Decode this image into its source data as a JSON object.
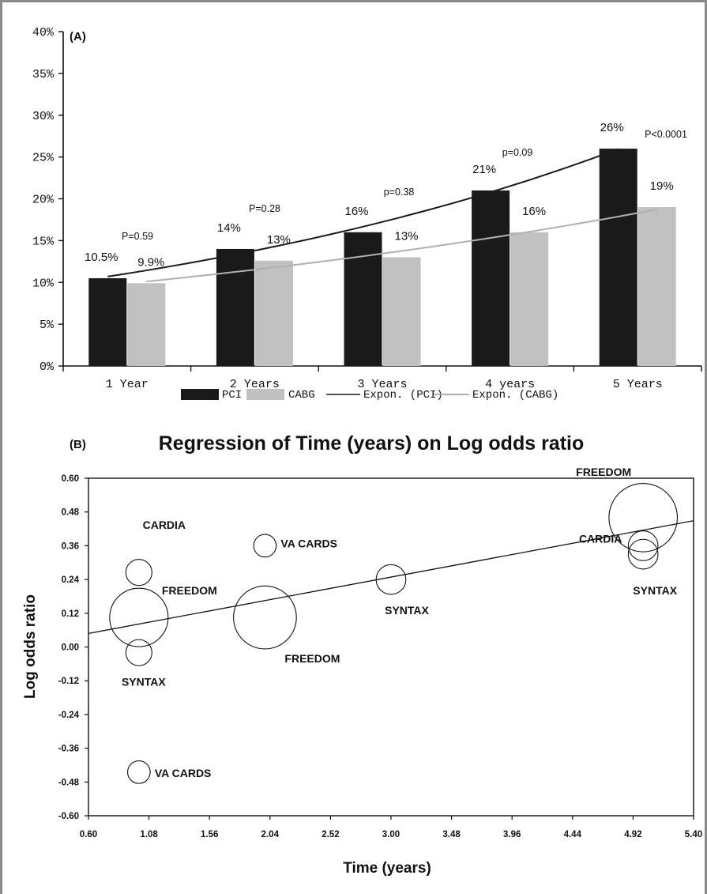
{
  "chart_data": [
    {
      "type": "bar",
      "panel_label": "(A)",
      "categories": [
        "1 Year",
        "2 Years",
        "3 Years",
        "4 years",
        "5 Years"
      ],
      "ylim": [
        0,
        40
      ],
      "y_ticks": [
        "0%",
        "5%",
        "10%",
        "15%",
        "20%",
        "25%",
        "30%",
        "35%",
        "40%"
      ],
      "series": [
        {
          "name": "PCI",
          "values": [
            10.5,
            14,
            16,
            21,
            26
          ],
          "labels": [
            "10.5%",
            "14%",
            "16%",
            "21%",
            "26%"
          ],
          "color": "#1a1a1a"
        },
        {
          "name": "CABG",
          "values": [
            9.9,
            12.6,
            13,
            16,
            19
          ],
          "labels": [
            "9.9%",
            "13%",
            "13%",
            "16%",
            "19%"
          ],
          "color": "#c0c0c0"
        }
      ],
      "trendlines": [
        {
          "name": "Expon. (PCI)",
          "color": "#1a1a1a"
        },
        {
          "name": "Expon. (CABG)",
          "color": "#b0b0b0"
        }
      ],
      "p_values": [
        "P=0.59",
        "P=0.28",
        "p=0.38",
        "p=0.09",
        "P<0.0001"
      ],
      "legend": "bottom"
    },
    {
      "type": "scatter",
      "panel_label": "(B)",
      "title": "Regression of Time (years) on Log odds ratio",
      "xlabel": "Time (years)",
      "ylabel": "Log odds ratio",
      "xlim": [
        0.6,
        5.4
      ],
      "ylim": [
        -0.6,
        0.6
      ],
      "x_ticks": [
        "0.60",
        "1.08",
        "1.56",
        "2.04",
        "2.52",
        "3.00",
        "3.48",
        "3.96",
        "4.44",
        "4.92",
        "5.40"
      ],
      "y_ticks": [
        "-0.60",
        "-0.48",
        "-0.36",
        "-0.24",
        "-0.12",
        "0.00",
        "0.12",
        "0.24",
        "0.36",
        "0.48",
        "0.60"
      ],
      "points": [
        {
          "label": "CARDIA",
          "x": 1.0,
          "y": 0.265,
          "size": 1
        },
        {
          "label": "FREEDOM",
          "x": 1.0,
          "y": 0.105,
          "size": 3.8
        },
        {
          "label": "SYNTAX",
          "x": 1.0,
          "y": -0.02,
          "size": 1
        },
        {
          "label": "VA CARDS",
          "x": 1.0,
          "y": -0.445,
          "size": 0.75
        },
        {
          "label": "VA CARDS",
          "x": 2.0,
          "y": 0.36,
          "size": 0.75
        },
        {
          "label": "FREEDOM",
          "x": 2.0,
          "y": 0.105,
          "size": 4.4
        },
        {
          "label": "SYNTAX",
          "x": 3.0,
          "y": 0.24,
          "size": 1.3
        },
        {
          "label": "FREEDOM",
          "x": 5.0,
          "y": 0.46,
          "size": 5.2
        },
        {
          "label": "CARDIA",
          "x": 5.0,
          "y": 0.36,
          "size": 1.3
        },
        {
          "label": "SYNTAX",
          "x": 5.0,
          "y": 0.33,
          "size": 1.3
        }
      ],
      "regression": {
        "intercept": -0.002,
        "slope": 0.0835
      }
    }
  ]
}
